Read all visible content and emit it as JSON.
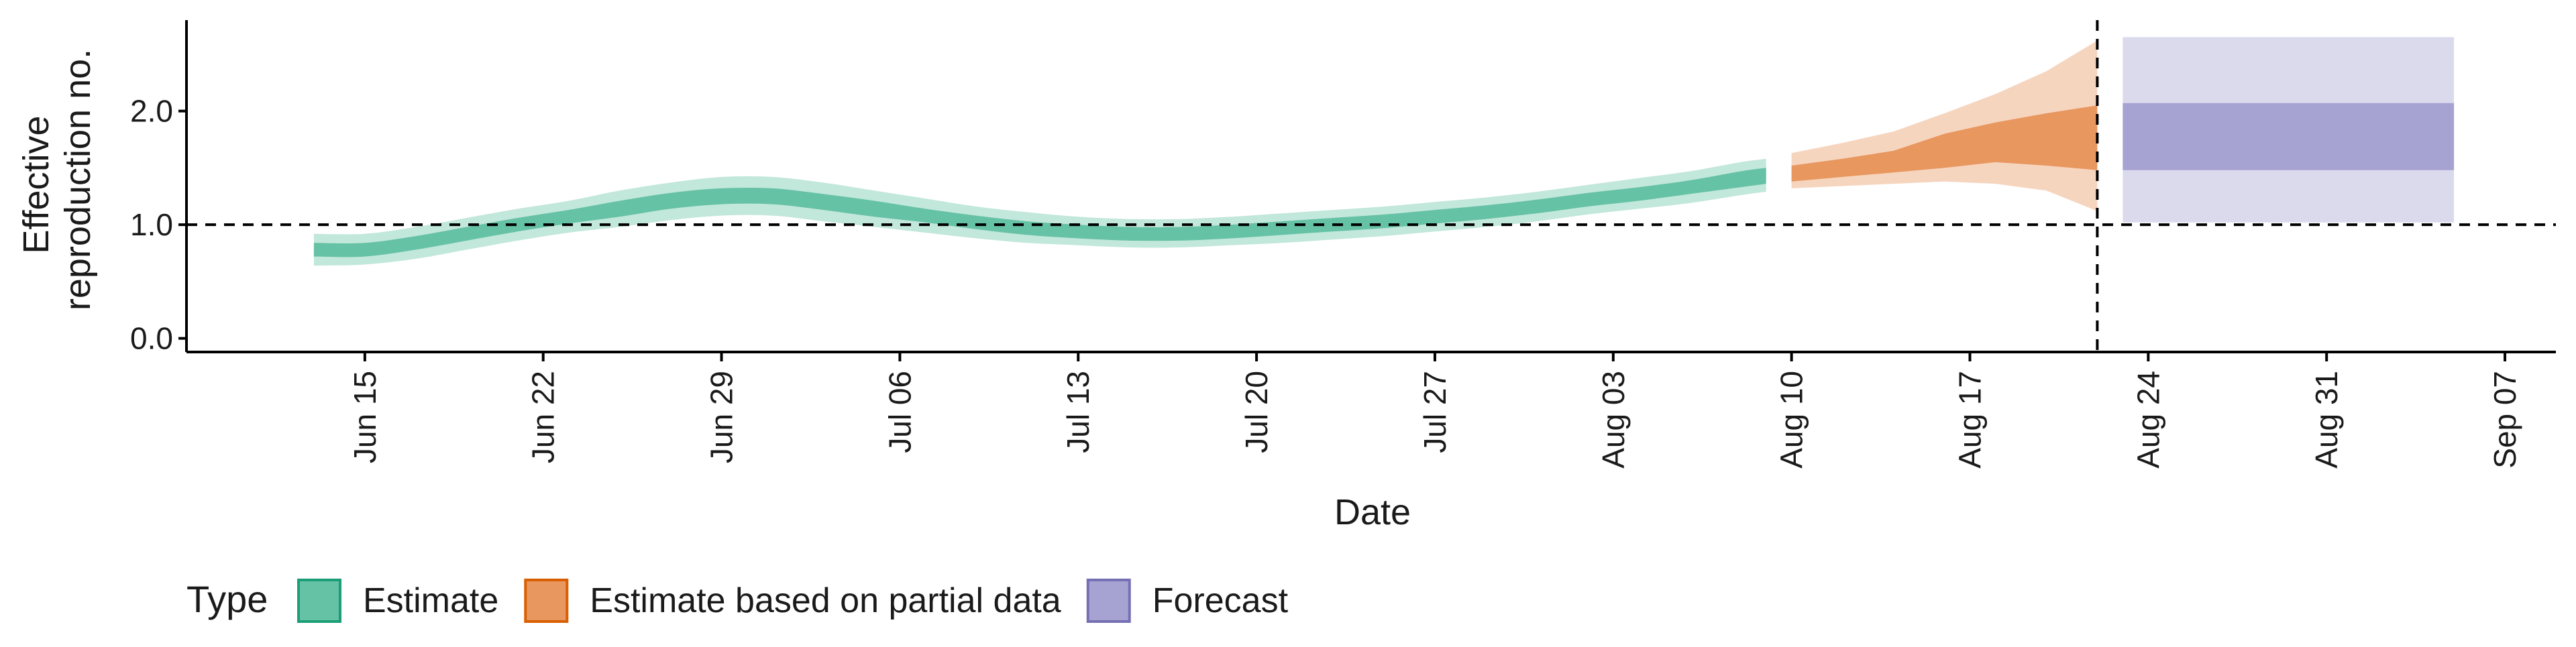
{
  "chart_data": {
    "type": "area",
    "xlabel": "Date",
    "ylabel_lines": [
      "Effective",
      "reproduction no."
    ],
    "x_ticks": [
      {
        "date": "2020-06-15",
        "label": "Jun 15"
      },
      {
        "date": "2020-06-22",
        "label": "Jun 22"
      },
      {
        "date": "2020-06-29",
        "label": "Jun 29"
      },
      {
        "date": "2020-07-06",
        "label": "Jul 06"
      },
      {
        "date": "2020-07-13",
        "label": "Jul 13"
      },
      {
        "date": "2020-07-20",
        "label": "Jul 20"
      },
      {
        "date": "2020-07-27",
        "label": "Jul 27"
      },
      {
        "date": "2020-08-03",
        "label": "Aug 03"
      },
      {
        "date": "2020-08-10",
        "label": "Aug 10"
      },
      {
        "date": "2020-08-17",
        "label": "Aug 17"
      },
      {
        "date": "2020-08-24",
        "label": "Aug 24"
      },
      {
        "date": "2020-08-31",
        "label": "Aug 31"
      },
      {
        "date": "2020-09-07",
        "label": "Sep 07"
      }
    ],
    "y_ticks": [
      {
        "value": 0,
        "label": "0.0"
      },
      {
        "value": 1,
        "label": "1.0"
      },
      {
        "value": 2,
        "label": "2.0"
      }
    ],
    "xlim": [
      "2020-06-08",
      "2020-09-09"
    ],
    "ylim": [
      -0.12,
      2.8
    ],
    "reference_line_y": 1.0,
    "reference_line_date": "2020-08-22",
    "legend_title": "Type",
    "legend": [
      {
        "label": "Estimate",
        "fill": "#66c2a5",
        "stroke": "#1b9e77"
      },
      {
        "label": "Estimate based on partial data",
        "fill": "#e8975f",
        "stroke": "#d95f02"
      },
      {
        "label": "Forecast",
        "fill": "#a6a2d1",
        "stroke": "#7570b3"
      }
    ],
    "series": [
      {
        "name": "Estimate",
        "color": "#66c2a5",
        "points": [
          {
            "date": "2020-06-13",
            "median": 0.78,
            "lower50": 0.72,
            "upper50": 0.84,
            "lower90": 0.64,
            "upper90": 0.92
          },
          {
            "date": "2020-06-15",
            "median": 0.78,
            "lower50": 0.72,
            "upper50": 0.84,
            "lower90": 0.65,
            "upper90": 0.92
          },
          {
            "date": "2020-06-17",
            "median": 0.84,
            "lower50": 0.78,
            "upper50": 0.9,
            "lower90": 0.7,
            "upper90": 0.98
          },
          {
            "date": "2020-06-19",
            "median": 0.92,
            "lower50": 0.86,
            "upper50": 0.98,
            "lower90": 0.78,
            "upper90": 1.06
          },
          {
            "date": "2020-06-21",
            "median": 1.0,
            "lower50": 0.94,
            "upper50": 1.06,
            "lower90": 0.86,
            "upper90": 1.14
          },
          {
            "date": "2020-06-23",
            "median": 1.07,
            "lower50": 1.01,
            "upper50": 1.13,
            "lower90": 0.93,
            "upper90": 1.21
          },
          {
            "date": "2020-06-25",
            "median": 1.14,
            "lower50": 1.07,
            "upper50": 1.21,
            "lower90": 0.98,
            "upper90": 1.3
          },
          {
            "date": "2020-06-27",
            "median": 1.21,
            "lower50": 1.14,
            "upper50": 1.28,
            "lower90": 1.04,
            "upper90": 1.37
          },
          {
            "date": "2020-06-29",
            "median": 1.25,
            "lower50": 1.18,
            "upper50": 1.32,
            "lower90": 1.08,
            "upper90": 1.42
          },
          {
            "date": "2020-07-01",
            "median": 1.25,
            "lower50": 1.18,
            "upper50": 1.32,
            "lower90": 1.08,
            "upper90": 1.42
          },
          {
            "date": "2020-07-03",
            "median": 1.2,
            "lower50": 1.13,
            "upper50": 1.27,
            "lower90": 1.03,
            "upper90": 1.37
          },
          {
            "date": "2020-07-05",
            "median": 1.14,
            "lower50": 1.07,
            "upper50": 1.21,
            "lower90": 0.98,
            "upper90": 1.3
          },
          {
            "date": "2020-07-07",
            "median": 1.08,
            "lower50": 1.02,
            "upper50": 1.14,
            "lower90": 0.93,
            "upper90": 1.23
          },
          {
            "date": "2020-07-09",
            "median": 1.02,
            "lower50": 0.96,
            "upper50": 1.08,
            "lower90": 0.88,
            "upper90": 1.16
          },
          {
            "date": "2020-07-11",
            "median": 0.97,
            "lower50": 0.91,
            "upper50": 1.03,
            "lower90": 0.84,
            "upper90": 1.11
          },
          {
            "date": "2020-07-13",
            "median": 0.94,
            "lower50": 0.88,
            "upper50": 1.0,
            "lower90": 0.82,
            "upper90": 1.07
          },
          {
            "date": "2020-07-15",
            "median": 0.92,
            "lower50": 0.86,
            "upper50": 0.98,
            "lower90": 0.8,
            "upper90": 1.05
          },
          {
            "date": "2020-07-17",
            "median": 0.92,
            "lower50": 0.86,
            "upper50": 0.98,
            "lower90": 0.8,
            "upper90": 1.05
          },
          {
            "date": "2020-07-19",
            "median": 0.94,
            "lower50": 0.88,
            "upper50": 1.0,
            "lower90": 0.82,
            "upper90": 1.07
          },
          {
            "date": "2020-07-21",
            "median": 0.97,
            "lower50": 0.91,
            "upper50": 1.03,
            "lower90": 0.84,
            "upper90": 1.1
          },
          {
            "date": "2020-07-23",
            "median": 1.0,
            "lower50": 0.94,
            "upper50": 1.06,
            "lower90": 0.87,
            "upper90": 1.13
          },
          {
            "date": "2020-07-25",
            "median": 1.03,
            "lower50": 0.97,
            "upper50": 1.09,
            "lower90": 0.9,
            "upper90": 1.16
          },
          {
            "date": "2020-07-27",
            "median": 1.07,
            "lower50": 1.01,
            "upper50": 1.13,
            "lower90": 0.94,
            "upper90": 1.2
          },
          {
            "date": "2020-07-29",
            "median": 1.11,
            "lower50": 1.05,
            "upper50": 1.17,
            "lower90": 0.98,
            "upper90": 1.24
          },
          {
            "date": "2020-07-31",
            "median": 1.16,
            "lower50": 1.1,
            "upper50": 1.22,
            "lower90": 1.03,
            "upper90": 1.29
          },
          {
            "date": "2020-08-02",
            "median": 1.22,
            "lower50": 1.16,
            "upper50": 1.28,
            "lower90": 1.09,
            "upper90": 1.35
          },
          {
            "date": "2020-08-04",
            "median": 1.27,
            "lower50": 1.21,
            "upper50": 1.33,
            "lower90": 1.14,
            "upper90": 1.41
          },
          {
            "date": "2020-08-06",
            "median": 1.33,
            "lower50": 1.27,
            "upper50": 1.39,
            "lower90": 1.19,
            "upper90": 1.47
          },
          {
            "date": "2020-08-08",
            "median": 1.4,
            "lower50": 1.33,
            "upper50": 1.47,
            "lower90": 1.26,
            "upper90": 1.55
          },
          {
            "date": "2020-08-09",
            "median": 1.43,
            "lower50": 1.36,
            "upper50": 1.5,
            "lower90": 1.29,
            "upper90": 1.58
          }
        ]
      },
      {
        "name": "Estimate based on partial data",
        "color": "#e8975f",
        "points": [
          {
            "date": "2020-08-10",
            "median": 1.45,
            "lower50": 1.38,
            "upper50": 1.52,
            "lower90": 1.32,
            "upper90": 1.63
          },
          {
            "date": "2020-08-12",
            "median": 1.5,
            "lower50": 1.42,
            "upper50": 1.58,
            "lower90": 1.34,
            "upper90": 1.72
          },
          {
            "date": "2020-08-14",
            "median": 1.56,
            "lower50": 1.46,
            "upper50": 1.65,
            "lower90": 1.36,
            "upper90": 1.82
          },
          {
            "date": "2020-08-16",
            "median": 1.64,
            "lower50": 1.5,
            "upper50": 1.8,
            "lower90": 1.38,
            "upper90": 1.98
          },
          {
            "date": "2020-08-18",
            "median": 1.7,
            "lower50": 1.55,
            "upper50": 1.9,
            "lower90": 1.36,
            "upper90": 2.15
          },
          {
            "date": "2020-08-20",
            "median": 1.75,
            "lower50": 1.52,
            "upper50": 1.98,
            "lower90": 1.3,
            "upper90": 2.35
          },
          {
            "date": "2020-08-22",
            "median": 1.76,
            "lower50": 1.48,
            "upper50": 2.05,
            "lower90": 1.12,
            "upper90": 2.62
          }
        ]
      },
      {
        "name": "Forecast",
        "color": "#a6a2d1",
        "start": "2020-08-23",
        "end": "2020-09-05",
        "lower50": 1.48,
        "upper50": 2.07,
        "lower90": 1.02,
        "upper90": 2.65
      }
    ]
  }
}
